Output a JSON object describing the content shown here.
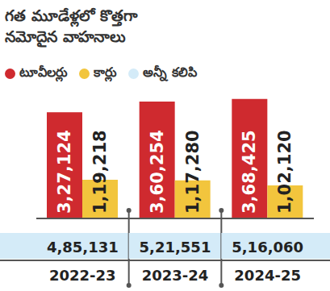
{
  "chart_data": {
    "type": "bar",
    "title": "గత మూడేళ్లలో కొత్తగా\nనమోదైన వాహనాలు",
    "categories": [
      "2022-23",
      "2023-24",
      "2024-25"
    ],
    "series": [
      {
        "name": "టూవీలర్లు",
        "color": "#cf2a2f",
        "values": [
          327124,
          360254,
          368425
        ],
        "value_labels": [
          "3,27,124",
          "3,60,254",
          "3,68,425"
        ]
      },
      {
        "name": "కార్లు",
        "color": "#f2c53d",
        "values": [
          119218,
          117280,
          102120
        ],
        "value_labels": [
          "1,19,218",
          "1,17,280",
          "1,02,120"
        ]
      }
    ],
    "totals": {
      "name": "అన్నీ కలిపి",
      "color": "#d4ebf8",
      "values": [
        485131,
        521551,
        516060
      ],
      "value_labels": [
        "4,85,131",
        "5,21,551",
        "5,16,060"
      ]
    },
    "ylim": [
      0,
      400000
    ],
    "data_labels": true,
    "tick_labels": "x"
  }
}
